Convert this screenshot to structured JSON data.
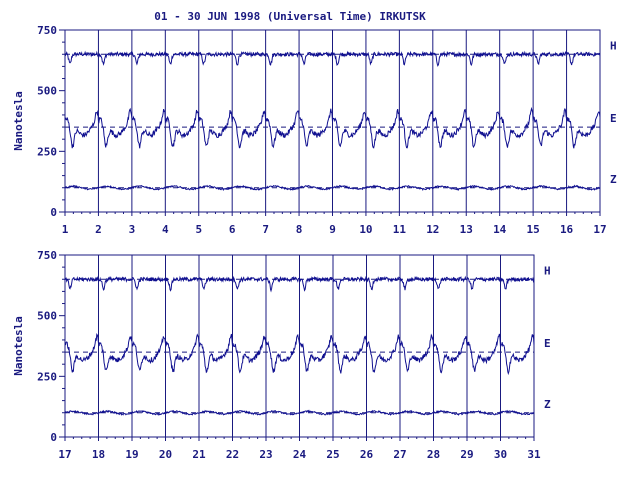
{
  "title": "01 - 30 JUN 1998 (Universal Time) IRKUTSK",
  "colors": {
    "ink": "#1a1a80",
    "trace": "#101090",
    "background": "#ffffff"
  },
  "chart_data": [
    {
      "type": "line",
      "panel": "top",
      "ylabel": "Nanotesla",
      "ylim": [
        0,
        750
      ],
      "yticks": [
        0,
        250,
        500,
        750
      ],
      "xlim": [
        1,
        17
      ],
      "xticks": [
        "1",
        "2",
        "3",
        "4",
        "5",
        "6",
        "7",
        "8",
        "9",
        "10",
        "11",
        "12",
        "13",
        "14",
        "15",
        "16",
        "17"
      ],
      "grid": "vertical lines at each day",
      "series": [
        {
          "name": "H",
          "baseline": 650,
          "amplitude": 45,
          "shape": "dips"
        },
        {
          "name": "E",
          "baseline": 350,
          "amplitude": 110,
          "shape": "daily-variation"
        },
        {
          "name": "Z",
          "baseline": 100,
          "amplitude": 12,
          "shape": "flat"
        }
      ]
    },
    {
      "type": "line",
      "panel": "bottom",
      "ylabel": "Nanotesla",
      "ylim": [
        0,
        750
      ],
      "yticks": [
        0,
        250,
        500,
        750
      ],
      "xlim": [
        17,
        31
      ],
      "xticks": [
        "17",
        "18",
        "19",
        "20",
        "21",
        "22",
        "23",
        "24",
        "25",
        "26",
        "27",
        "28",
        "29",
        "30",
        "31"
      ],
      "grid": "vertical lines at each day",
      "series": [
        {
          "name": "H",
          "baseline": 650,
          "amplitude": 45,
          "shape": "dips"
        },
        {
          "name": "E",
          "baseline": 350,
          "amplitude": 110,
          "shape": "daily-variation"
        },
        {
          "name": "Z",
          "baseline": 100,
          "amplitude": 12,
          "shape": "flat"
        }
      ]
    }
  ]
}
